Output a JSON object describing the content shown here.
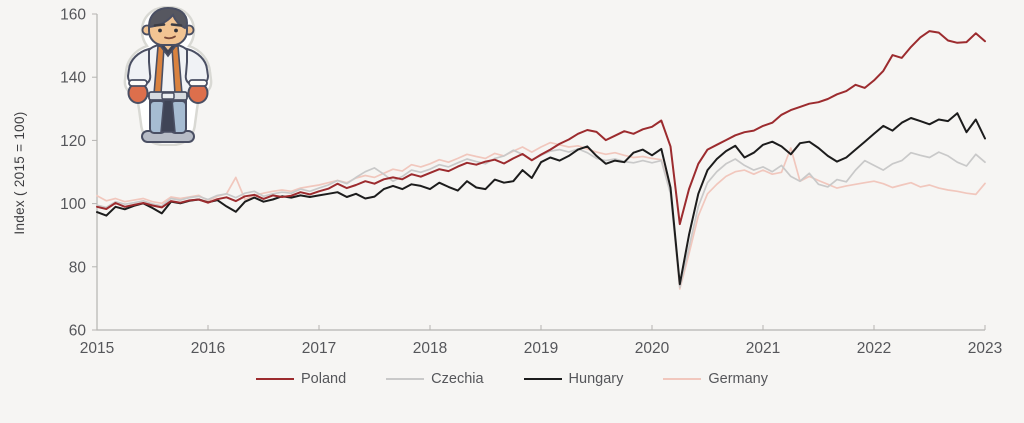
{
  "page": {
    "background": "#f6f5f3"
  },
  "mascot": {
    "alt": "cartoon strongman mascot sticker"
  },
  "chart_data": {
    "type": "line",
    "title": "",
    "xlabel": "",
    "ylabel": "Index ( 2015 = 100)",
    "ylim": [
      60,
      160
    ],
    "yticks": [
      60,
      80,
      100,
      120,
      140,
      160
    ],
    "xticks": [
      "2015",
      "2016",
      "2017",
      "2018",
      "2019",
      "2020",
      "2021",
      "2022",
      "2023"
    ],
    "x_unit": "monthly, Jan 2015 - Jan 2023",
    "grid": false,
    "legend_position": "bottom",
    "colors": {
      "axis": "#b5b4b1",
      "text": "#55565a"
    },
    "draw_order": [
      "Germany",
      "Czechia",
      "Hungary",
      "Poland"
    ],
    "series": [
      {
        "name": "Poland",
        "color": "#9c2b2e",
        "width": 2,
        "values": [
          99.0,
          98.3,
          100.2,
          99.0,
          99.6,
          100.2,
          99.4,
          98.8,
          100.8,
          100.3,
          101.0,
          101.3,
          100.3,
          101.4,
          102.0,
          100.8,
          102.3,
          102.8,
          101.5,
          102.6,
          102.1,
          102.5,
          103.6,
          102.9,
          103.9,
          104.7,
          106.3,
          104.9,
          105.9,
          107.1,
          106.3,
          107.7,
          108.3,
          107.7,
          109.3,
          108.5,
          109.7,
          110.9,
          110.3,
          111.7,
          112.9,
          112.3,
          113.3,
          113.9,
          112.7,
          114.3,
          115.7,
          113.7,
          115.5,
          117.1,
          118.9,
          120.3,
          122.1,
          123.3,
          122.7,
          120.1,
          121.5,
          122.9,
          122.1,
          123.5,
          124.3,
          126.3,
          118.1,
          93.5,
          104.6,
          112.6,
          117.1,
          118.6,
          120.1,
          121.6,
          122.6,
          123.1,
          124.6,
          125.6,
          128.1,
          129.6,
          130.6,
          131.6,
          132.1,
          133.1,
          134.6,
          135.6,
          137.6,
          136.6,
          139.0,
          142.0,
          147.0,
          146.1,
          149.6,
          152.6,
          154.6,
          154.1,
          151.6,
          150.9,
          151.1,
          153.9,
          151.4
        ]
      },
      {
        "name": "Czechia",
        "color": "#c9c9c9",
        "width": 1.7,
        "values": [
          99.5,
          98.8,
          100.6,
          99.8,
          100.3,
          100.9,
          99.9,
          99.3,
          101.6,
          101.1,
          101.9,
          102.3,
          101.3,
          102.6,
          103.1,
          101.9,
          103.3,
          103.9,
          102.3,
          103.1,
          103.6,
          103.3,
          104.6,
          103.9,
          104.9,
          105.9,
          107.3,
          106.3,
          108.3,
          110.1,
          111.3,
          109.3,
          107.1,
          108.6,
          110.6,
          109.9,
          110.9,
          112.3,
          111.6,
          112.9,
          114.1,
          113.3,
          112.6,
          114.3,
          115.1,
          116.9,
          115.6,
          113.9,
          115.3,
          116.6,
          117.1,
          116.3,
          117.3,
          116.1,
          114.3,
          113.6,
          114.1,
          113.3,
          112.9,
          113.6,
          112.9,
          113.6,
          103.1,
          73.5,
          86.1,
          99.1,
          106.6,
          110.1,
          112.6,
          114.1,
          112.1,
          110.6,
          111.6,
          110.1,
          112.1,
          108.6,
          107.1,
          109.6,
          106.1,
          105.3,
          107.6,
          106.9,
          110.6,
          113.6,
          112.1,
          110.6,
          112.6,
          113.6,
          116.1,
          115.3,
          114.6,
          116.3,
          115.1,
          113.1,
          111.9,
          115.6,
          113.1
        ]
      },
      {
        "name": "Hungary",
        "color": "#1c1c1c",
        "width": 2,
        "values": [
          97.3,
          96.2,
          99.0,
          98.2,
          99.3,
          100.1,
          98.6,
          96.9,
          100.6,
          100.1,
          100.9,
          101.3,
          100.4,
          101.1,
          99.1,
          97.4,
          100.6,
          101.9,
          100.6,
          101.3,
          102.3,
          101.9,
          102.6,
          102.1,
          102.6,
          103.1,
          103.6,
          102.1,
          103.1,
          101.6,
          102.2,
          104.6,
          105.6,
          104.6,
          106.1,
          105.6,
          104.6,
          106.6,
          105.3,
          104.1,
          107.1,
          105.1,
          104.6,
          107.6,
          106.6,
          107.1,
          110.6,
          108.1,
          113.1,
          114.6,
          113.6,
          115.1,
          117.1,
          118.1,
          115.1,
          112.6,
          113.6,
          113.1,
          116.1,
          117.1,
          115.3,
          117.3,
          105.1,
          74.5,
          90.1,
          103.1,
          110.6,
          114.1,
          116.6,
          118.3,
          114.6,
          116.1,
          118.6,
          119.6,
          118.1,
          115.6,
          119.1,
          119.6,
          117.6,
          115.1,
          113.3,
          114.6,
          117.1,
          119.6,
          122.1,
          124.6,
          123.1,
          125.6,
          127.1,
          126.1,
          125.1,
          126.6,
          126.1,
          128.6,
          122.6,
          126.6,
          120.6
        ]
      },
      {
        "name": "Germany",
        "color": "#f1c7bd",
        "width": 1.7,
        "values": [
          102.5,
          100.9,
          101.6,
          100.6,
          101.1,
          101.6,
          100.6,
          100.1,
          102.1,
          101.6,
          102.1,
          102.6,
          100.9,
          102.3,
          103.1,
          108.3,
          101.3,
          102.6,
          103.3,
          103.9,
          104.3,
          103.9,
          104.9,
          105.4,
          105.9,
          106.6,
          107.3,
          106.6,
          108.1,
          108.9,
          108.3,
          109.6,
          110.9,
          110.3,
          112.3,
          111.6,
          112.6,
          113.9,
          113.1,
          114.3,
          115.6,
          114.9,
          114.3,
          115.9,
          115.1,
          116.6,
          117.9,
          116.3,
          117.9,
          119.3,
          118.6,
          117.9,
          118.3,
          117.3,
          116.3,
          115.6,
          116.1,
          115.3,
          114.6,
          114.9,
          114.3,
          113.9,
          104.1,
          73.0,
          84.1,
          96.1,
          103.1,
          106.1,
          108.6,
          110.1,
          110.6,
          109.3,
          110.6,
          109.3,
          109.9,
          117.6,
          107.1,
          108.6,
          107.3,
          106.1,
          104.9,
          105.6,
          106.1,
          106.6,
          107.1,
          106.3,
          105.1,
          105.9,
          106.6,
          105.3,
          105.9,
          104.9,
          104.3,
          103.9,
          103.3,
          102.9,
          106.4
        ]
      }
    ]
  }
}
